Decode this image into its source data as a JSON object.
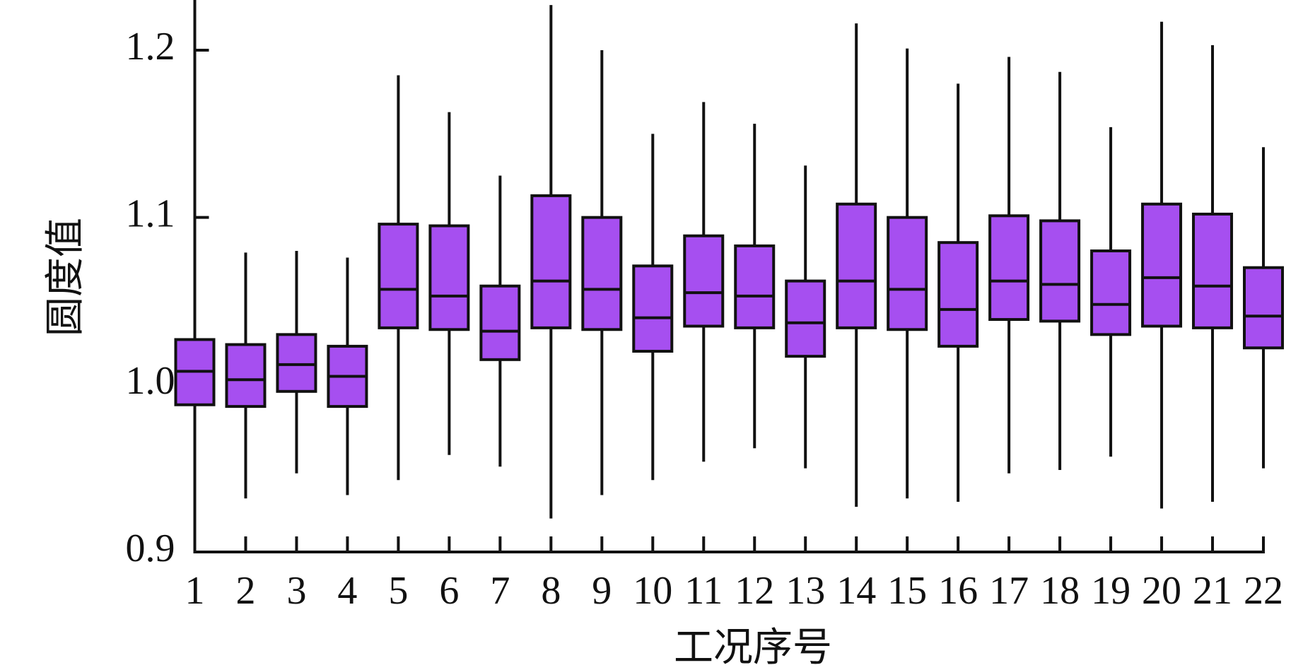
{
  "chart_data": {
    "type": "box",
    "xlabel": "工况序号",
    "ylabel": "圆度值",
    "categories": [
      "1",
      "2",
      "3",
      "4",
      "5",
      "6",
      "7",
      "8",
      "9",
      "10",
      "11",
      "12",
      "13",
      "14",
      "15",
      "16",
      "17",
      "18",
      "19",
      "20",
      "21",
      "22"
    ],
    "color": "#a64ff0",
    "min": [
      0.988,
      0.932,
      0.947,
      0.934,
      0.943,
      0.958,
      0.951,
      0.92,
      0.934,
      0.943,
      0.954,
      0.962,
      0.95,
      0.927,
      0.932,
      0.93,
      0.947,
      0.949,
      0.957,
      0.926,
      0.93,
      0.95
    ],
    "q1": [
      0.988,
      0.987,
      0.996,
      0.987,
      1.034,
      1.033,
      1.015,
      1.034,
      1.033,
      1.02,
      1.035,
      1.034,
      1.017,
      1.034,
      1.033,
      1.023,
      1.039,
      1.038,
      1.03,
      1.035,
      1.034,
      1.022
    ],
    "median": [
      1.008,
      1.003,
      1.012,
      1.005,
      1.057,
      1.053,
      1.032,
      1.062,
      1.057,
      1.04,
      1.055,
      1.053,
      1.037,
      1.062,
      1.057,
      1.045,
      1.062,
      1.06,
      1.048,
      1.064,
      1.059,
      1.041
    ],
    "q3": [
      1.027,
      1.024,
      1.03,
      1.023,
      1.096,
      1.095,
      1.059,
      1.113,
      1.1,
      1.071,
      1.089,
      1.083,
      1.062,
      1.108,
      1.1,
      1.085,
      1.101,
      1.098,
      1.08,
      1.108,
      1.102,
      1.07
    ],
    "max": [
      1.027,
      1.079,
      1.08,
      1.076,
      1.185,
      1.163,
      1.125,
      1.227,
      1.2,
      1.15,
      1.169,
      1.156,
      1.131,
      1.216,
      1.201,
      1.18,
      1.196,
      1.187,
      1.154,
      1.217,
      1.203,
      1.142
    ],
    "ylim": [
      0.9,
      1.23
    ],
    "yticks": [
      0.9,
      {
        "value": 1,
        "label": "1.0"
      },
      1.1,
      1.2
    ]
  }
}
